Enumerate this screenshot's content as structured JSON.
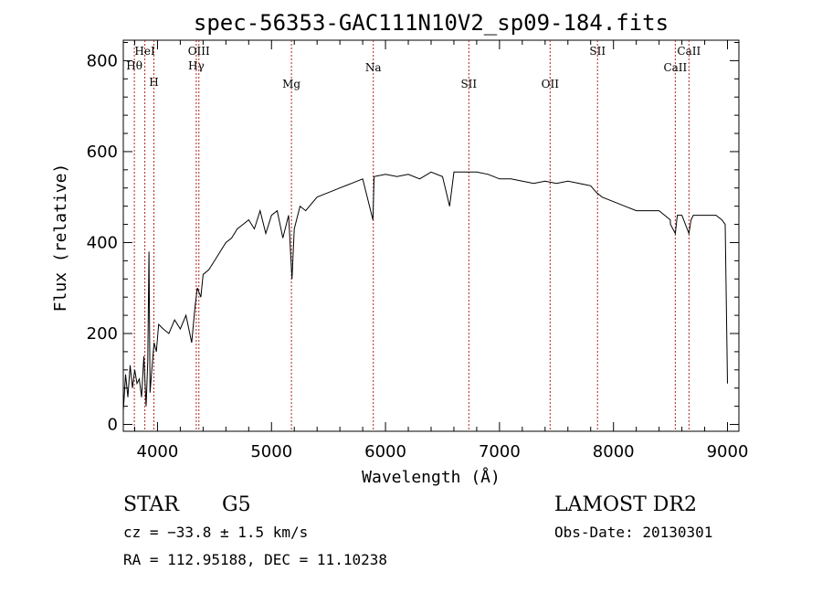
{
  "chart_data": {
    "type": "line",
    "title": "spec-56353-GAC111N10V2_sp09-184.fits",
    "xlabel": "Wavelength (Å)",
    "ylabel": "Flux (relative)",
    "xlim": [
      3700,
      9100
    ],
    "ylim": [
      -15,
      845
    ],
    "x_ticks": [
      "4000",
      "5000",
      "6000",
      "7000",
      "8000",
      "9000"
    ],
    "y_ticks": [
      "0",
      "200",
      "400",
      "600",
      "800"
    ],
    "grid": false,
    "line_color": "#000000",
    "marker_color": "#b22222",
    "spectrum": {
      "x": [
        3700,
        3720,
        3740,
        3760,
        3780,
        3800,
        3820,
        3840,
        3860,
        3880,
        3900,
        3915,
        3925,
        3935,
        3950,
        3970,
        3990,
        4010,
        4050,
        4100,
        4150,
        4200,
        4250,
        4300,
        4330,
        4350,
        4380,
        4400,
        4450,
        4500,
        4550,
        4600,
        4650,
        4700,
        4750,
        4800,
        4850,
        4900,
        4950,
        5000,
        5050,
        5100,
        5150,
        5180,
        5200,
        5250,
        5300,
        5400,
        5500,
        5600,
        5700,
        5800,
        5890,
        5900,
        6000,
        6100,
        6200,
        6300,
        6400,
        6500,
        6563,
        6600,
        6700,
        6800,
        6900,
        7000,
        7100,
        7200,
        7300,
        7400,
        7500,
        7600,
        7700,
        7800,
        7850,
        7900,
        8000,
        8100,
        8200,
        8300,
        8400,
        8498,
        8500,
        8542,
        8560,
        8600,
        8662,
        8680,
        8700,
        8800,
        8900,
        8950,
        8980,
        9000
      ],
      "y": [
        30,
        110,
        60,
        130,
        80,
        120,
        90,
        100,
        60,
        150,
        40,
        140,
        380,
        70,
        120,
        180,
        160,
        220,
        210,
        200,
        230,
        210,
        240,
        180,
        260,
        300,
        280,
        330,
        340,
        360,
        380,
        400,
        410,
        430,
        440,
        450,
        430,
        470,
        420,
        460,
        470,
        410,
        460,
        320,
        430,
        480,
        470,
        500,
        510,
        520,
        530,
        540,
        450,
        545,
        550,
        545,
        550,
        540,
        555,
        545,
        480,
        555,
        555,
        555,
        550,
        540,
        540,
        535,
        530,
        535,
        530,
        535,
        530,
        525,
        510,
        500,
        490,
        480,
        470,
        470,
        470,
        450,
        440,
        420,
        460,
        460,
        420,
        450,
        460,
        460,
        460,
        450,
        440,
        90
      ]
    },
    "line_markers": [
      {
        "x": 3797,
        "label": "Hθ",
        "row": "upper2"
      },
      {
        "x": 3889,
        "label": "HeI",
        "row": "upper1"
      },
      {
        "x": 3968,
        "label": "H",
        "row": "mid"
      },
      {
        "x": 4340,
        "label": "Hγ",
        "row": "upper2"
      },
      {
        "x": 4363,
        "label": "OIII",
        "row": "upper1"
      },
      {
        "x": 5175,
        "label": "Mg",
        "row": "lower"
      },
      {
        "x": 5893,
        "label": "Na",
        "row": "mid2"
      },
      {
        "x": 6731,
        "label": "SII",
        "row": "lower"
      },
      {
        "x": 7444,
        "label": "OII",
        "row": "lower"
      },
      {
        "x": 7860,
        "label": "SII",
        "row": "upper1"
      },
      {
        "x": 8542,
        "label": "CaII",
        "row": "mid2"
      },
      {
        "x": 8662,
        "label": "CaII",
        "row": "upper1"
      }
    ]
  },
  "info": {
    "object_class": "STAR",
    "subclass": "G5",
    "survey": "LAMOST DR2",
    "redshift": "cz = −33.8 ± 1.5 km/s",
    "obs_date": "Obs-Date: 20130301",
    "coords": "RA = 112.95188, DEC =  11.10238"
  }
}
